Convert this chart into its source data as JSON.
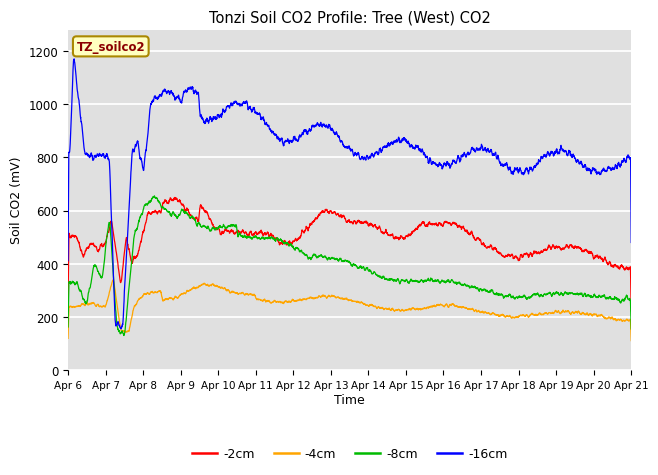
{
  "title": "Tonzi Soil CO2 Profile: Tree (West) CO2",
  "ylabel": "Soil CO2 (mV)",
  "xlabel": "Time",
  "legend_label": "TZ_soilco2",
  "ylim": [
    0,
    1280
  ],
  "series_labels": [
    "-2cm",
    "-4cm",
    "-8cm",
    "-16cm"
  ],
  "series_colors": [
    "#ff0000",
    "#ffa500",
    "#00bb00",
    "#0000ff"
  ],
  "bg_color": "#e0e0e0",
  "fig_bg": "#ffffff",
  "x_tick_labels": [
    "Apr 6",
    "Apr 7",
    "Apr 8",
    "Apr 9",
    "Apr 10",
    "Apr 11",
    "Apr 12",
    "Apr 13",
    "Apr 14",
    "Apr 15",
    "Apr 16",
    "Apr 17",
    "Apr 18",
    "Apr 19",
    "Apr 20",
    "Apr 21"
  ],
  "n_points": 3600,
  "duration_days": 15
}
